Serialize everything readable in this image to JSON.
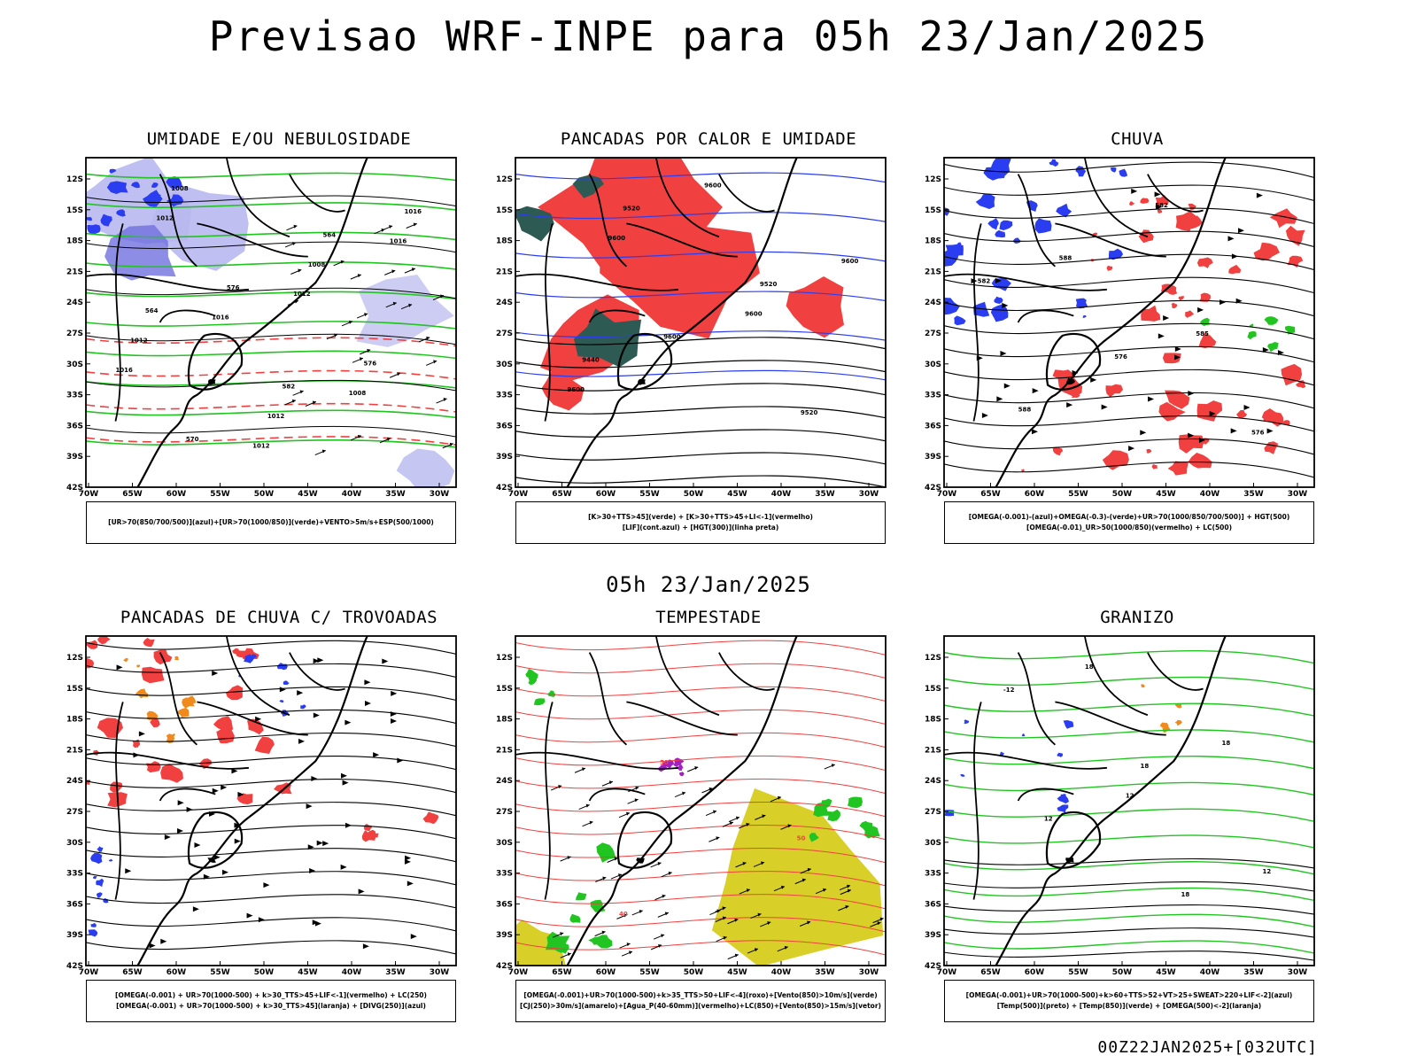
{
  "main_title": "Previsao WRF-INPE  para 05h 23/Jan/2025",
  "mid_title": "05h 23/Jan/2025",
  "footer": "00Z22JAN2025+[032UTC]",
  "axes": {
    "lat_ticks": [
      "12S",
      "15S",
      "18S",
      "21S",
      "24S",
      "27S",
      "30S",
      "33S",
      "36S",
      "39S",
      "42S"
    ],
    "lon_ticks": [
      "70W",
      "65W",
      "60W",
      "55W",
      "50W",
      "45W",
      "40W",
      "35W",
      "30W"
    ]
  },
  "colors": {
    "blue": "#2b3df0",
    "lavender": "#b8b8f0",
    "red": "#f04040",
    "green": "#22c422",
    "teal": "#2e5a54",
    "yellow": "#d8d028",
    "orange": "#f08a1c",
    "purple": "#a020c0",
    "black": "#000000"
  },
  "panels": [
    {
      "title": "UMIDADE E/OU NEBULOSIDADE",
      "legend": [
        "[UR>70(850/700/500)](azul)+[UR>70(1000/850)](verde)+VENTO>5m/s+ESP(500/1000)"
      ],
      "contour_labels": [
        "1012",
        "1012",
        "1016",
        "1012",
        "1016",
        "1016",
        "1008",
        "1008",
        "1008",
        "1012",
        "1012",
        "1016",
        "576",
        "576",
        "570",
        "564",
        "564",
        "582"
      ]
    },
    {
      "title": "PANCADAS POR CALOR E UMIDADE",
      "legend": [
        "[K>30+TTS>45](verde) + [K>30+TTS>45+LI<-1](vermelho)",
        "[LIF](cont.azul) + [HGT(300)](linha preta)"
      ],
      "contour_labels": [
        "9600",
        "9600",
        "9600",
        "9600",
        "9600",
        "9600",
        "9520",
        "9520",
        "9520",
        "9440"
      ]
    },
    {
      "title": "CHUVA",
      "legend": [
        "[OMEGA(-0.001)-(azul)+OMEGA(-0.3)-(verde)+UR>70(1000/850/700/500)] + HGT(500)",
        "[OMEGA(-0.01)_UR>50(1000/850)(vermelho) + LC(500)"
      ],
      "contour_labels": [
        "588",
        "585",
        "588",
        "582",
        "582",
        "576",
        "576"
      ]
    },
    {
      "title": "PANCADAS DE CHUVA C/ TROVOADAS",
      "legend": [
        "[OMEGA(-0.001) + UR>70(1000-500) + k>30_TTS>45+LIF<-1](vermelho) + LC(250)",
        "[OMEGA(-0.001) + UR>70(1000-500) + k>30_TTS>45](laranja) + [DIVG(250)](azul)"
      ],
      "contour_labels": []
    },
    {
      "title": "TEMPESTADE",
      "legend": [
        "[OMEGA(-0.001)+UR>70(1000-500)+k>35_TTS>50+LIF<-4](roxo)+[Vento(850)>10m/s](verde)",
        "[CJ(250)>30m/s](amarelo)+[Agua_P(40-60mm)](vermelho)+LC(850)+[Vento(850)>15m/s](vetor)"
      ],
      "contour_labels": [
        "50",
        "50",
        "40"
      ]
    },
    {
      "title": "GRANIZO",
      "legend": [
        "[OMEGA(-0.001)+UR>70(1000-500)+k>60+TTS>52+VT>25+SWEAT>220+LIF<-2](azul)",
        "[Temp(500)](preto) + [Temp(850)](verde) + [OMEGA(500)<-2](laranja)"
      ],
      "contour_labels": [
        "12",
        "12",
        "18",
        "18",
        "12",
        "18",
        "-12",
        "18"
      ]
    }
  ]
}
